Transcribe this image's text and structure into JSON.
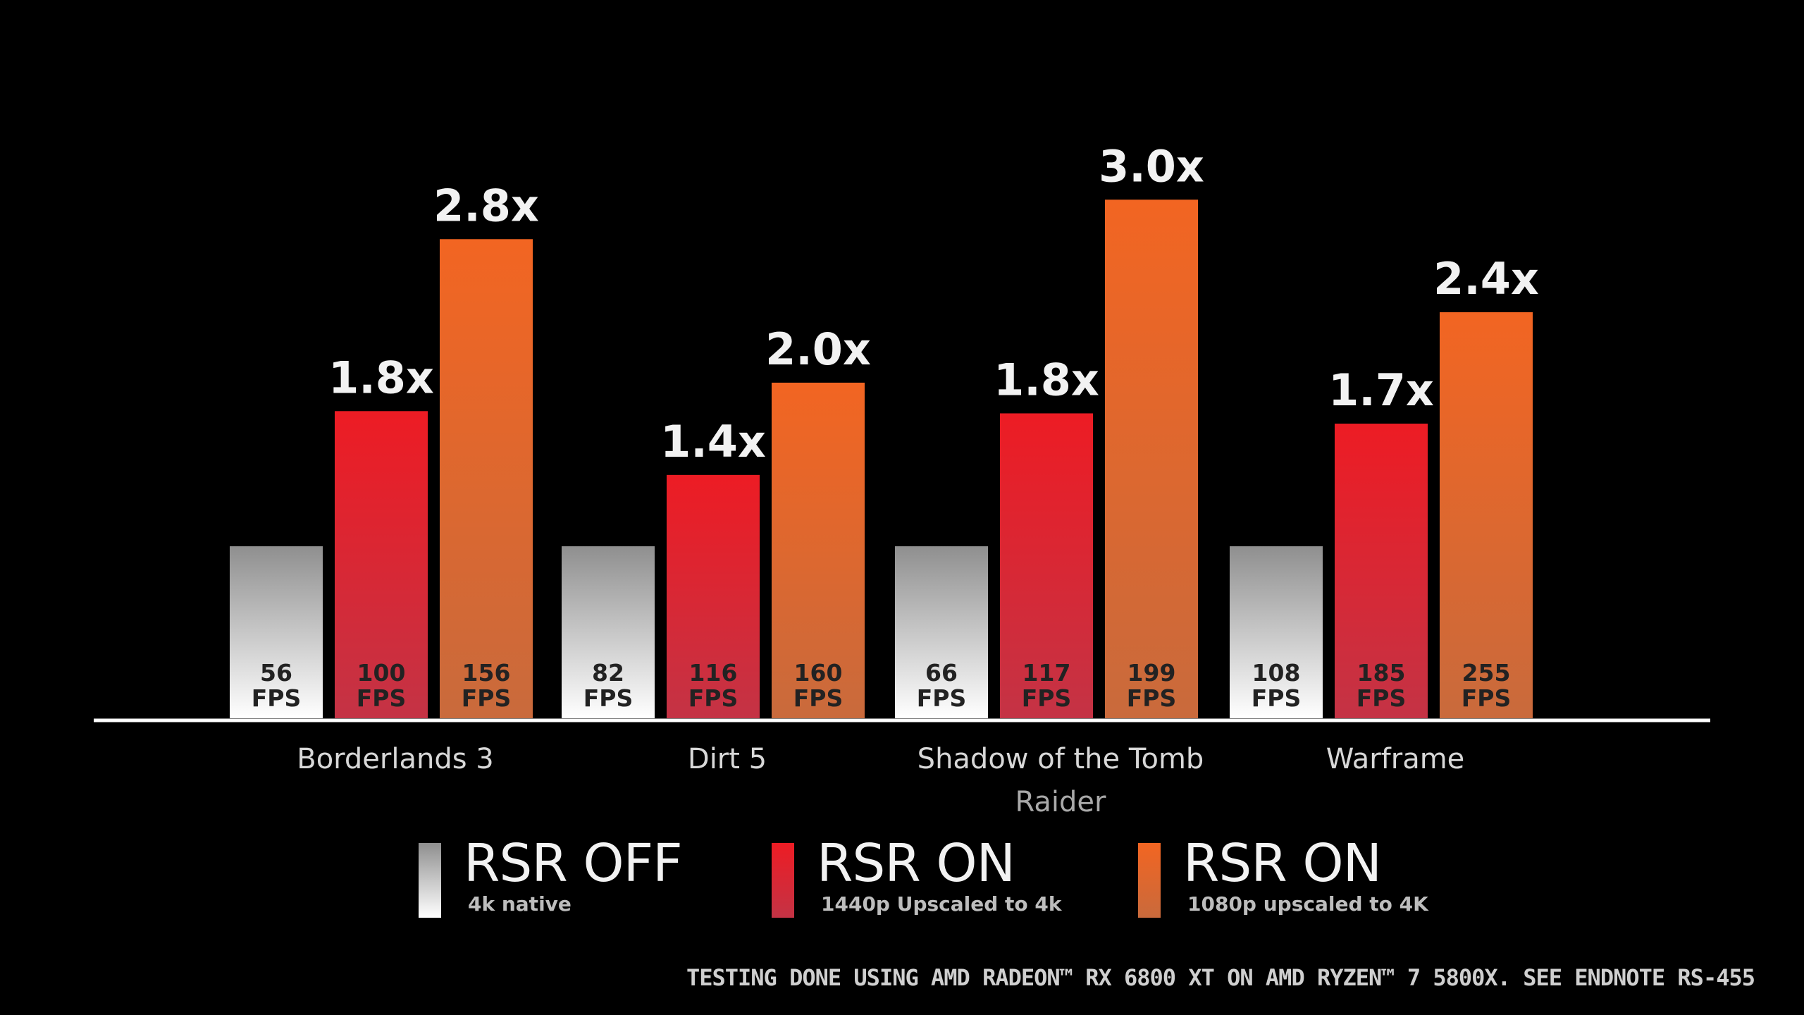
{
  "chart_data": {
    "type": "bar",
    "categories": [
      "Borderlands 3",
      "Dirt 5",
      "Shadow of the Tomb Raider",
      "Warframe"
    ],
    "category_label_lines": [
      [
        "Borderlands 3"
      ],
      [
        "Dirt 5"
      ],
      [
        "Shadow of the Tomb",
        "Raider"
      ],
      [
        "Warframe"
      ]
    ],
    "series": [
      {
        "name": "RSR OFF",
        "sub": "4k native",
        "color": "#9a9a9a",
        "gradient": [
          "#8f8f8f",
          "#ffffff"
        ],
        "values": [
          56,
          82,
          66,
          108
        ],
        "ratios": [
          "",
          "",
          "",
          ""
        ]
      },
      {
        "name": "RSR ON",
        "sub": "1440p Upscaled to 4k",
        "color": "#ed1c24",
        "gradient": [
          "#ed1c24",
          "#c43345"
        ],
        "values": [
          100,
          116,
          117,
          185
        ],
        "ratios": [
          "1.8x",
          "1.4x",
          "1.8x",
          "1.7x"
        ]
      },
      {
        "name": "RSR ON",
        "sub": "1080p upscaled to 4K",
        "color": "#f26522",
        "gradient": [
          "#f26522",
          "#c96a3c"
        ],
        "values": [
          156,
          160,
          199,
          255
        ],
        "ratios": [
          "2.8x",
          "2.0x",
          "3.0x",
          "2.4x"
        ]
      }
    ],
    "value_unit": "FPS",
    "xlabel": "",
    "ylabel": "",
    "grid": false,
    "legend_position": "bottom"
  },
  "footnote": "TESTING DONE USING AMD RADEON™ RX 6800 XT ON AMD RYZEN™ 7 5800X. SEE ENDNOTE RS-455"
}
